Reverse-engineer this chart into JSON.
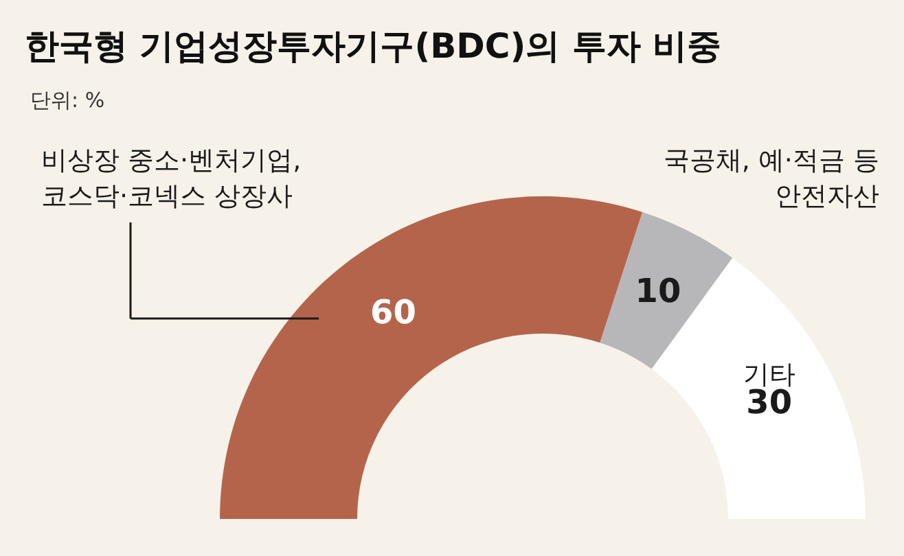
{
  "chart_data": {
    "type": "donut",
    "title": "한국형 기업성장투자기구(BDC)의 투자 비중",
    "subtitle": "단위: %",
    "categories": [
      "비상장 중소·벤처기업,\n코스닥·코넥스 상장사",
      "국공채, 예·적금 등\n안전자산",
      "기타"
    ],
    "values": [
      60,
      10,
      30
    ],
    "colors": [
      "#b5644c",
      "#b7b7b9",
      "#ffffff"
    ],
    "data_labels": true,
    "legend": false
  }
}
